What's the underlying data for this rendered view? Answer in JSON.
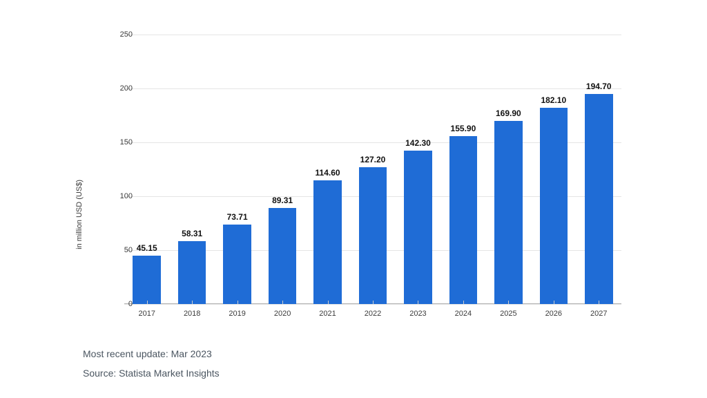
{
  "chart": {
    "type": "bar",
    "ylabel": "in million USD (US$)",
    "label_fontsize": 11,
    "value_label_fontsize": 12,
    "value_label_fontweight": 700,
    "ylim": [
      0,
      250
    ],
    "ytick_step": 50,
    "yticks": [
      0,
      50,
      100,
      150,
      200,
      250
    ],
    "categories": [
      "2017",
      "2018",
      "2019",
      "2020",
      "2021",
      "2022",
      "2023",
      "2024",
      "2025",
      "2026",
      "2027"
    ],
    "values": [
      45.15,
      58.31,
      73.71,
      89.31,
      114.6,
      127.2,
      142.3,
      155.9,
      169.9,
      182.1,
      194.7
    ],
    "value_labels": [
      "45.15",
      "58.31",
      "73.71",
      "89.31",
      "114.60",
      "127.20",
      "142.30",
      "155.90",
      "169.90",
      "182.10",
      "194.70"
    ],
    "bar_color": "#1f6cd6",
    "bar_width": 0.62,
    "background_color": "#ffffff",
    "grid_color": "#e5e5e5",
    "baseline_color": "#b0b0b0",
    "tick_color": "#cccccc",
    "text_color": "#3a3a3a",
    "value_label_color": "#111111"
  },
  "footnotes": {
    "update_line": "Most recent update: Mar 2023",
    "source_line": "Source: Statista Market Insights",
    "text_color": "#4a5560",
    "fontsize": 14
  }
}
